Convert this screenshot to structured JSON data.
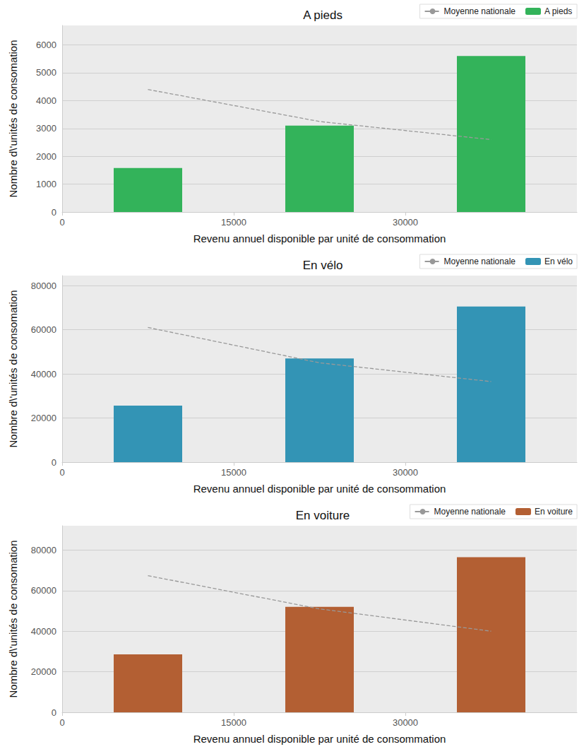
{
  "chart_data": [
    {
      "type": "bar",
      "title": "A pieds",
      "x_label": "Revenu annuel disponible par unité de consommation",
      "y_label": "Nombre d\\'unités de consomation",
      "x": [
        7500,
        22500,
        37500
      ],
      "series": [
        {
          "name": "Moyenne nationale",
          "type": "line",
          "line_style": "dashed",
          "color": "#999999",
          "values": [
            4400,
            3250,
            2600
          ]
        },
        {
          "name": "A pieds",
          "type": "bar",
          "color": "#33b35a",
          "values": [
            1580,
            3100,
            5600
          ]
        }
      ],
      "xlim": [
        0,
        45000
      ],
      "xticks": [
        0,
        15000,
        30000
      ],
      "ylim": [
        0,
        6700
      ],
      "yticks": [
        0,
        1000,
        2000,
        3000,
        4000,
        5000,
        6000
      ],
      "grid": true,
      "legend": "upper right"
    },
    {
      "type": "bar",
      "title": "En vélo",
      "x_label": "Revenu annuel disponible par unité de consommation",
      "y_label": "Nombre d\\'unités de consomation",
      "x": [
        7500,
        22500,
        37500
      ],
      "series": [
        {
          "name": "Moyenne nationale",
          "type": "line",
          "line_style": "dashed",
          "color": "#999999",
          "values": [
            61000,
            45000,
            36500
          ]
        },
        {
          "name": "En vélo",
          "type": "bar",
          "color": "#3394b5",
          "values": [
            25600,
            47000,
            70500
          ]
        }
      ],
      "xlim": [
        0,
        45000
      ],
      "xticks": [
        0,
        15000,
        30000
      ],
      "ylim": [
        0,
        84500
      ],
      "yticks": [
        0,
        20000,
        40000,
        60000,
        80000
      ],
      "grid": true,
      "legend": "upper right"
    },
    {
      "type": "bar",
      "title": "En voiture",
      "x_label": "Revenu annuel disponible par unité de consommation",
      "y_label": "Nombre d\\'unités de consomation",
      "x": [
        7500,
        22500,
        37500
      ],
      "series": [
        {
          "name": "Moyenne nationale",
          "type": "line",
          "line_style": "dashed",
          "color": "#999999",
          "values": [
            67400,
            51000,
            40000
          ]
        },
        {
          "name": "En voiture",
          "type": "bar",
          "color": "#b35f33",
          "values": [
            28600,
            52000,
            76500
          ]
        }
      ],
      "xlim": [
        0,
        45000
      ],
      "xticks": [
        0,
        15000,
        30000
      ],
      "ylim": [
        0,
        92000
      ],
      "yticks": [
        0,
        20000,
        40000,
        60000,
        80000
      ],
      "grid": true,
      "legend": "upper right"
    }
  ]
}
